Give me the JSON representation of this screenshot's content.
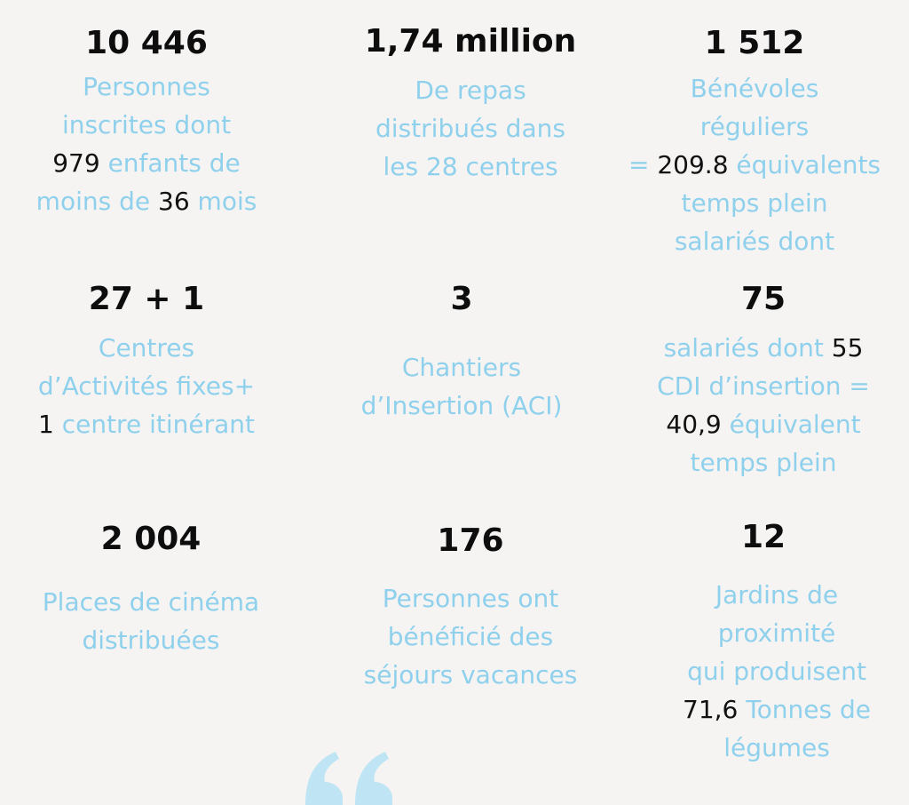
{
  "colors": {
    "background": "#f5f4f3",
    "number": "#0d0d0d",
    "text": "#8fd0ec",
    "inline_number": "#111111",
    "quote_icon": "#bfe5f5"
  },
  "stats": {
    "inscrits": {
      "number": "10 446",
      "l1": "Personnes",
      "l2": "inscrites dont",
      "l3_num": "979",
      "l3_text": " enfants de",
      "l4_a": "moins de ",
      "l4_num": "36",
      "l4_b": " mois"
    },
    "repas": {
      "number": "1,74 million",
      "l1": "De repas",
      "l2": "distribués dans",
      "l3": "les 28 centres"
    },
    "benevoles": {
      "number": "1 512",
      "l1": "Bénévoles",
      "l2": "réguliers",
      "l3_a": "= ",
      "l3_num": "209.8",
      "l3_b": " équivalents",
      "l4": "temps plein",
      "l5": "salariés dont"
    },
    "centres": {
      "number": "27 + 1",
      "l1": "Centres",
      "l2": " d’Activités fixes+",
      "l3_num": "1",
      "l3_text": " centre itinérant"
    },
    "chantiers": {
      "number": "3",
      "l1": "Chantiers",
      "l2": "d’Insertion (ACI)"
    },
    "salaries": {
      "number": "75",
      "l1_text": "salariés dont ",
      "l1_num": "55",
      "l2": "CDI d’insertion =",
      "l3_num": "40,9",
      "l3_text": " équivalent",
      "l4": "temps plein"
    },
    "cinema": {
      "number": "2 004",
      "l1": "Places de cinéma",
      "l2": "distribuées"
    },
    "vacances": {
      "number": "176",
      "l1": "Personnes ont",
      "l2": "bénéficié des",
      "l3": "séjours  vacances"
    },
    "jardins": {
      "number": "12",
      "l1": "Jardins de",
      "l2": "proximité",
      "l3": "qui produisent",
      "l4_num": "71,6",
      "l4_text": " Tonnes de",
      "l5": "légumes"
    }
  }
}
